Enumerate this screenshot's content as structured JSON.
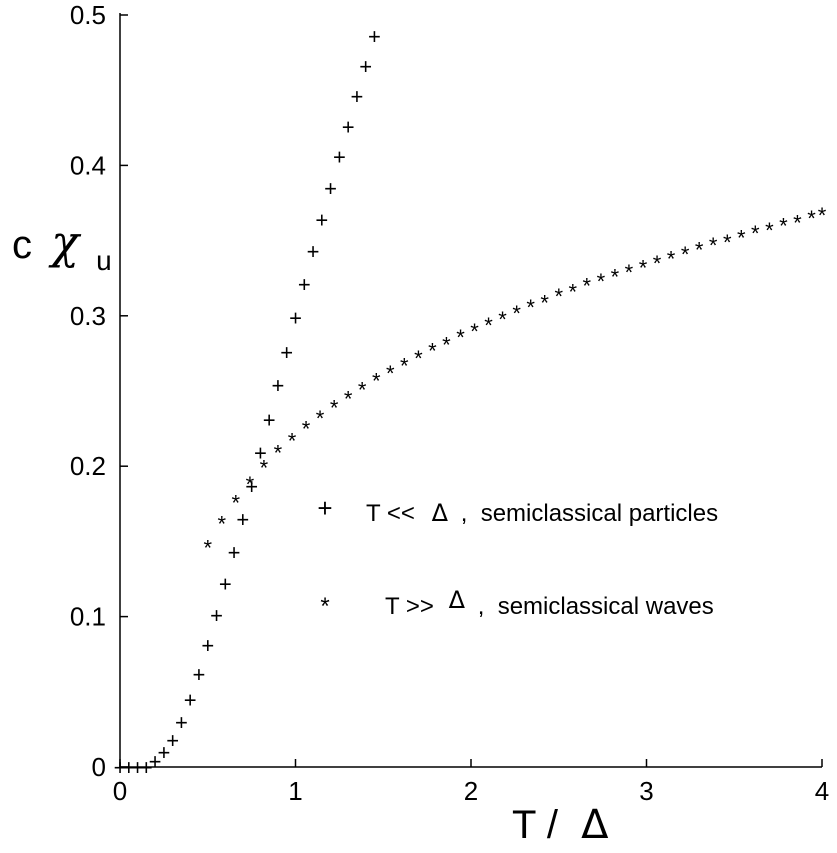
{
  "chart_data": {
    "type": "scatter",
    "xlim": [
      0,
      4
    ],
    "ylim": [
      0,
      0.5
    ],
    "x_ticks": [
      "0",
      "1",
      "2",
      "3",
      "4"
    ],
    "y_ticks": [
      "0",
      "0.1",
      "0.2",
      "0.3",
      "0.4",
      "0.5"
    ],
    "x_tick_values": [
      0,
      1,
      2,
      3,
      4
    ],
    "y_tick_values": [
      0,
      0.1,
      0.2,
      0.3,
      0.4,
      0.5
    ],
    "xlabel": {
      "main": "T /",
      "symbol": "Δ"
    },
    "ylabel": {
      "main": "c",
      "symbol": "χ",
      "subscript": "u"
    },
    "grid": false,
    "legend_position": "right",
    "series": [
      {
        "marker": "+",
        "legend": {
          "prefix": "T <<",
          "symbol": "Δ",
          "suffix": ",  semiclassical particles"
        },
        "x": [
          0.0,
          0.05,
          0.1,
          0.15,
          0.2,
          0.25,
          0.3,
          0.35,
          0.4,
          0.45,
          0.5,
          0.55,
          0.6,
          0.65,
          0.7,
          0.75,
          0.8,
          0.85,
          0.9,
          0.95,
          1.0,
          1.05,
          1.1,
          1.15,
          1.2,
          1.25,
          1.3,
          1.35,
          1.4,
          1.45
        ],
        "y": [
          0.0,
          0.0,
          0.0,
          0.0,
          0.004,
          0.01,
          0.018,
          0.03,
          0.045,
          0.062,
          0.081,
          0.101,
          0.122,
          0.143,
          0.165,
          0.187,
          0.209,
          0.231,
          0.254,
          0.276,
          0.299,
          0.321,
          0.343,
          0.364,
          0.385,
          0.406,
          0.426,
          0.446,
          0.466,
          0.486
        ]
      },
      {
        "marker": "*",
        "legend": {
          "prefix": "T >>",
          "symbol": "Δ",
          "suffix": ",  semiclassical waves"
        },
        "x": [
          0.5,
          0.58,
          0.66,
          0.74,
          0.82,
          0.9,
          0.98,
          1.06,
          1.14,
          1.22,
          1.3,
          1.38,
          1.46,
          1.54,
          1.62,
          1.7,
          1.78,
          1.86,
          1.94,
          2.02,
          2.1,
          2.18,
          2.26,
          2.34,
          2.42,
          2.5,
          2.58,
          2.66,
          2.74,
          2.82,
          2.9,
          2.98,
          3.06,
          3.14,
          3.22,
          3.3,
          3.38,
          3.46,
          3.54,
          3.62,
          3.7,
          3.78,
          3.86,
          3.94,
          4.0
        ],
        "y": [
          0.148,
          0.164,
          0.178,
          0.19,
          0.201,
          0.211,
          0.219,
          0.227,
          0.234,
          0.241,
          0.247,
          0.253,
          0.259,
          0.264,
          0.269,
          0.274,
          0.279,
          0.283,
          0.288,
          0.292,
          0.296,
          0.3,
          0.304,
          0.308,
          0.311,
          0.315,
          0.318,
          0.322,
          0.325,
          0.328,
          0.331,
          0.334,
          0.337,
          0.34,
          0.343,
          0.346,
          0.349,
          0.351,
          0.354,
          0.357,
          0.359,
          0.362,
          0.364,
          0.367,
          0.369
        ]
      }
    ]
  }
}
